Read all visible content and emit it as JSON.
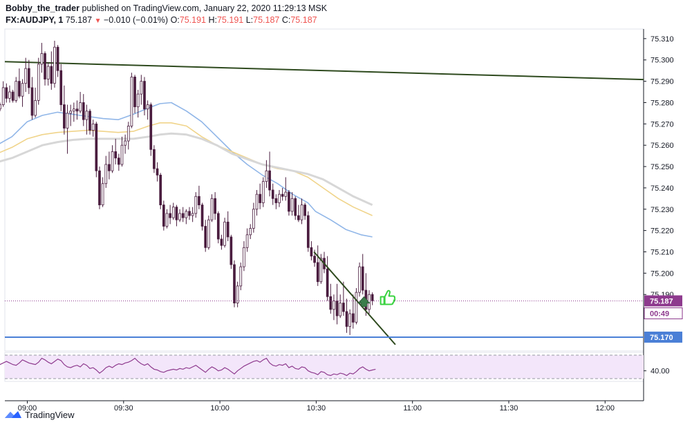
{
  "header": {
    "author": "Bobby_the_trader",
    "published": "published on TradingView.com, January 22, 2020 11:29:13 MSK",
    "symbol": "FX:AUDJPY, 1",
    "last": "75.187",
    "change": "−0.010 (−0.01%)",
    "o_label": "O:",
    "o": "75.191",
    "h_label": "H:",
    "h": "75.191",
    "l_label": "L:",
    "l": "75.187",
    "c_label": "C:",
    "c": "75.187"
  },
  "footer": {
    "brand": "TradingView"
  },
  "colors": {
    "up": "#ffffff",
    "down": "#4a1d3f",
    "wick": "#4a1d3f",
    "ma_fast": "#90b6e8",
    "ma_mid": "#f0d48a",
    "ma_slow": "#d7d7d7",
    "trend": "#2e4a1e",
    "support": "#4a7fd6",
    "rsi": "#8e3a8e",
    "rsi_bg": "#f3e6fa",
    "thumb": "#38d23f"
  },
  "chart_data": {
    "type": "candlestick",
    "price_axis": {
      "ticks": [
        "75.310",
        "75.300",
        "75.290",
        "75.280",
        "75.270",
        "75.260",
        "75.250",
        "75.240",
        "75.230",
        "75.220",
        "75.210",
        "75.200",
        "75.190"
      ],
      "range": [
        75.1635,
        75.3145
      ]
    },
    "time_axis": {
      "ticks": [
        "09:00",
        "09:30",
        "10:00",
        "10:30",
        "11:00",
        "11:30",
        "12:00"
      ],
      "range": [
        "08:53",
        "12:12"
      ]
    },
    "labels": {
      "current_price": "75.187",
      "countdown": "00:49",
      "support_price": "75.170"
    },
    "candles": [
      [
        75.2785,
        75.281,
        75.2745,
        75.277
      ],
      [
        75.277,
        75.28,
        75.276,
        75.279
      ],
      [
        75.279,
        75.29,
        75.278,
        75.287
      ],
      [
        75.287,
        75.289,
        75.28,
        75.282
      ],
      [
        75.282,
        75.288,
        75.28,
        75.285
      ],
      [
        75.285,
        75.286,
        75.28,
        75.281
      ],
      [
        75.281,
        75.292,
        75.28,
        75.29
      ],
      [
        75.29,
        75.296,
        75.282,
        75.283
      ],
      [
        75.283,
        75.291,
        75.278,
        75.289
      ],
      [
        75.289,
        75.301,
        75.285,
        75.296
      ],
      [
        75.296,
        75.3,
        75.284,
        75.287
      ],
      [
        75.287,
        75.292,
        75.272,
        75.274
      ],
      [
        75.274,
        75.287,
        75.273,
        75.281
      ],
      [
        75.281,
        75.301,
        75.279,
        75.298
      ],
      [
        75.298,
        75.308,
        75.294,
        75.303
      ],
      [
        75.303,
        75.304,
        75.288,
        75.291
      ],
      [
        75.291,
        75.299,
        75.288,
        75.297
      ],
      [
        75.297,
        75.304,
        75.286,
        75.289
      ],
      [
        75.289,
        75.309,
        75.287,
        75.306
      ],
      [
        75.306,
        75.307,
        75.292,
        75.295
      ],
      [
        75.295,
        75.298,
        75.276,
        75.279
      ],
      [
        75.279,
        75.288,
        75.265,
        75.268
      ],
      [
        75.268,
        75.279,
        75.256,
        75.275
      ],
      [
        75.275,
        75.279,
        75.269,
        75.276
      ],
      [
        75.276,
        75.28,
        75.271,
        75.277
      ],
      [
        75.277,
        75.281,
        75.272,
        75.276
      ],
      [
        75.276,
        75.285,
        75.275,
        75.28
      ],
      [
        75.28,
        75.284,
        75.269,
        75.272
      ],
      [
        75.272,
        75.279,
        75.265,
        75.276
      ],
      [
        75.276,
        75.277,
        75.265,
        75.267
      ],
      [
        75.267,
        75.272,
        75.264,
        75.27
      ],
      [
        75.27,
        75.271,
        75.245,
        75.248
      ],
      [
        75.248,
        75.25,
        75.23,
        75.232
      ],
      [
        75.232,
        75.245,
        75.231,
        75.242
      ],
      [
        75.242,
        75.255,
        75.24,
        75.251
      ],
      [
        75.251,
        75.257,
        75.244,
        75.248
      ],
      [
        75.248,
        75.26,
        75.247,
        75.257
      ],
      [
        75.257,
        75.263,
        75.251,
        75.254
      ],
      [
        75.254,
        75.256,
        75.248,
        75.251
      ],
      [
        75.251,
        75.264,
        75.25,
        75.26
      ],
      [
        75.26,
        75.265,
        75.256,
        75.262
      ],
      [
        75.262,
        75.271,
        75.258,
        75.269
      ],
      [
        75.269,
        75.294,
        75.268,
        75.292
      ],
      [
        75.292,
        75.293,
        75.275,
        75.278
      ],
      [
        75.278,
        75.286,
        75.273,
        75.284
      ],
      [
        75.284,
        75.293,
        75.279,
        75.29
      ],
      [
        75.29,
        75.292,
        75.274,
        75.277
      ],
      [
        75.277,
        75.281,
        75.272,
        75.279
      ],
      [
        75.279,
        75.28,
        75.255,
        75.258
      ],
      [
        75.258,
        75.26,
        75.247,
        75.249
      ],
      [
        75.249,
        75.252,
        75.243,
        75.246
      ],
      [
        75.246,
        75.247,
        75.23,
        75.232
      ],
      [
        75.232,
        75.234,
        75.22,
        75.222
      ],
      [
        75.222,
        75.23,
        75.221,
        75.228
      ],
      [
        75.228,
        75.232,
        75.223,
        75.226
      ],
      [
        75.226,
        75.233,
        75.225,
        75.231
      ],
      [
        75.231,
        75.232,
        75.222,
        75.225
      ],
      [
        75.225,
        75.23,
        75.224,
        75.228
      ],
      [
        75.228,
        75.231,
        75.224,
        75.226
      ],
      [
        75.226,
        75.23,
        75.223,
        75.229
      ],
      [
        75.229,
        75.231,
        75.225,
        75.227
      ],
      [
        75.227,
        75.231,
        75.224,
        75.228
      ],
      [
        75.228,
        75.238,
        75.226,
        75.236
      ],
      [
        75.236,
        75.241,
        75.23,
        75.232
      ],
      [
        75.232,
        75.233,
        75.22,
        75.222
      ],
      [
        75.222,
        75.225,
        75.21,
        75.212
      ],
      [
        75.212,
        75.227,
        75.211,
        75.225
      ],
      [
        75.225,
        75.237,
        75.224,
        75.235
      ],
      [
        75.235,
        75.238,
        75.225,
        75.228
      ],
      [
        75.228,
        75.229,
        75.214,
        75.216
      ],
      [
        75.216,
        75.218,
        75.211,
        75.213
      ],
      [
        75.213,
        75.226,
        75.212,
        75.224
      ],
      [
        75.224,
        75.229,
        75.215,
        75.217
      ],
      [
        75.217,
        75.218,
        75.202,
        75.204
      ],
      [
        75.204,
        75.206,
        75.184,
        75.186
      ],
      [
        75.186,
        75.196,
        75.184,
        75.194
      ],
      [
        75.194,
        75.205,
        75.192,
        75.203
      ],
      [
        75.203,
        75.215,
        75.201,
        75.212
      ],
      [
        75.212,
        75.221,
        75.21,
        75.218
      ],
      [
        75.218,
        75.223,
        75.216,
        75.221
      ],
      [
        75.221,
        75.233,
        75.219,
        75.23
      ],
      [
        75.23,
        75.239,
        75.227,
        75.237
      ],
      [
        75.237,
        75.242,
        75.23,
        75.233
      ],
      [
        75.233,
        75.245,
        75.231,
        75.243
      ],
      [
        75.243,
        75.253,
        75.24,
        75.248
      ],
      [
        75.248,
        75.257,
        75.236,
        75.239
      ],
      [
        75.239,
        75.242,
        75.232,
        75.235
      ],
      [
        75.235,
        75.237,
        75.23,
        75.233
      ],
      [
        75.233,
        75.239,
        75.231,
        75.237
      ],
      [
        75.237,
        75.24,
        75.234,
        75.236
      ],
      [
        75.236,
        75.245,
        75.234,
        75.238
      ],
      [
        75.238,
        75.239,
        75.227,
        75.229
      ],
      [
        75.229,
        75.238,
        75.227,
        75.235
      ],
      [
        75.235,
        75.236,
        75.225,
        75.227
      ],
      [
        75.227,
        75.232,
        75.224,
        75.225
      ],
      [
        75.225,
        75.235,
        75.223,
        75.232
      ],
      [
        75.232,
        75.233,
        75.225,
        75.227
      ],
      [
        75.227,
        75.229,
        75.21,
        75.212
      ],
      [
        75.212,
        75.215,
        75.206,
        75.208
      ],
      [
        75.208,
        75.211,
        75.203,
        75.205
      ],
      [
        75.205,
        75.213,
        75.194,
        75.196
      ],
      [
        75.196,
        75.209,
        75.195,
        75.207
      ],
      [
        75.207,
        75.21,
        75.2,
        75.202
      ],
      [
        75.202,
        75.208,
        75.187,
        75.189
      ],
      [
        75.189,
        75.195,
        75.181,
        75.183
      ],
      [
        75.183,
        75.19,
        75.178,
        75.187
      ],
      [
        75.187,
        75.195,
        75.176,
        75.18
      ],
      [
        75.18,
        75.19,
        75.179,
        75.186
      ],
      [
        75.186,
        75.196,
        75.18,
        75.182
      ],
      [
        75.182,
        75.188,
        75.172,
        75.175
      ],
      [
        75.175,
        75.183,
        75.171,
        75.181
      ],
      [
        75.181,
        75.19,
        75.174,
        75.177
      ],
      [
        75.177,
        75.193,
        75.176,
        75.191
      ],
      [
        75.191,
        75.205,
        75.189,
        75.203
      ],
      [
        75.203,
        75.209,
        75.19,
        75.192
      ],
      [
        75.192,
        75.2,
        75.18,
        75.183
      ],
      [
        75.183,
        75.192,
        75.181,
        75.19
      ],
      [
        75.19,
        75.191,
        75.185,
        75.187
      ]
    ],
    "series": [
      {
        "values": [
          [
            0,
            75.26
          ],
          [
            20,
            75.264
          ],
          [
            40,
            75.271
          ],
          [
            60,
            75.274
          ],
          [
            80,
            75.2755
          ],
          [
            100,
            75.2745
          ],
          [
            120,
            75.2735
          ],
          [
            140,
            75.2725
          ],
          [
            160,
            75.272
          ],
          [
            180,
            75.2745
          ],
          [
            200,
            75.2775
          ],
          [
            215,
            75.2795
          ],
          [
            230,
            75.28
          ],
          [
            250,
            75.276
          ],
          [
            270,
            75.271
          ],
          [
            290,
            75.264
          ],
          [
            310,
            75.257
          ],
          [
            330,
            75.251
          ],
          [
            350,
            75.246
          ],
          [
            370,
            75.242
          ],
          [
            390,
            75.237
          ],
          [
            410,
            75.233
          ],
          [
            420,
            75.229
          ],
          [
            440,
            75.225
          ],
          [
            460,
            75.2205
          ],
          [
            480,
            75.218
          ],
          [
            495,
            75.217
          ]
        ]
      },
      {
        "values": [
          [
            0,
            75.256
          ],
          [
            20,
            75.259
          ],
          [
            40,
            75.263
          ],
          [
            60,
            75.265
          ],
          [
            80,
            75.266
          ],
          [
            100,
            75.2665
          ],
          [
            120,
            75.267
          ],
          [
            140,
            75.2665
          ],
          [
            160,
            75.266
          ],
          [
            180,
            75.2665
          ],
          [
            200,
            75.269
          ],
          [
            215,
            75.2705
          ],
          [
            230,
            75.2705
          ],
          [
            250,
            75.269
          ],
          [
            270,
            75.264
          ],
          [
            290,
            75.26
          ],
          [
            310,
            75.257
          ],
          [
            330,
            75.254
          ],
          [
            350,
            75.251
          ],
          [
            370,
            75.249
          ],
          [
            390,
            75.248
          ],
          [
            410,
            75.245
          ],
          [
            430,
            75.24
          ],
          [
            450,
            75.235
          ],
          [
            470,
            75.231
          ],
          [
            495,
            75.227
          ]
        ]
      },
      {
        "values": [
          [
            0,
            75.252
          ],
          [
            20,
            75.254
          ],
          [
            40,
            75.257
          ],
          [
            60,
            75.26
          ],
          [
            80,
            75.2615
          ],
          [
            100,
            75.2625
          ],
          [
            120,
            75.263
          ],
          [
            140,
            75.263
          ],
          [
            160,
            75.263
          ],
          [
            180,
            75.263
          ],
          [
            200,
            75.264
          ],
          [
            215,
            75.265
          ],
          [
            230,
            75.2655
          ],
          [
            250,
            75.265
          ],
          [
            270,
            75.263
          ],
          [
            290,
            75.26
          ],
          [
            310,
            75.256
          ],
          [
            330,
            75.2535
          ],
          [
            350,
            75.251
          ],
          [
            370,
            75.2495
          ],
          [
            390,
            75.248
          ],
          [
            410,
            75.2465
          ],
          [
            430,
            75.244
          ],
          [
            450,
            75.24
          ],
          [
            470,
            75.236
          ],
          [
            495,
            75.232
          ]
        ]
      }
    ],
    "rsi": {
      "axis_tick": "40.00",
      "values": [
        45,
        48,
        50,
        52,
        50,
        48,
        47,
        50,
        54,
        52,
        50,
        49,
        48,
        51,
        56,
        54,
        51,
        49,
        52,
        55,
        53,
        48,
        45,
        44,
        46,
        47,
        45,
        49,
        47,
        43,
        44,
        41,
        37,
        40,
        44,
        46,
        44,
        47,
        49,
        48,
        50,
        51,
        53,
        56,
        52,
        49,
        47,
        49,
        45,
        42,
        41,
        39,
        38,
        40,
        41,
        42,
        41,
        43,
        42,
        44,
        43,
        45,
        47,
        44,
        41,
        38,
        42,
        45,
        43,
        40,
        41,
        44,
        42,
        39,
        36,
        40,
        43,
        46,
        48,
        50,
        52,
        53,
        51,
        54,
        56,
        50,
        47,
        46,
        48,
        47,
        49,
        44,
        46,
        43,
        42,
        45,
        44,
        40,
        38,
        37,
        35,
        39,
        38,
        35,
        34,
        36,
        35,
        37,
        36,
        34,
        37,
        36,
        39,
        43,
        45,
        42,
        40,
        41,
        42
      ]
    },
    "overlays": {
      "resistance_line": [
        [
          75.2992,
          0
        ],
        [
          75.2908,
          495
        ]
      ],
      "support_price": 75.17,
      "trendline": [
        [
          75.21,
          418
        ],
        [
          75.1665,
          498
        ]
      ],
      "up_arrow_at": [
        75.186,
        484
      ]
    }
  }
}
